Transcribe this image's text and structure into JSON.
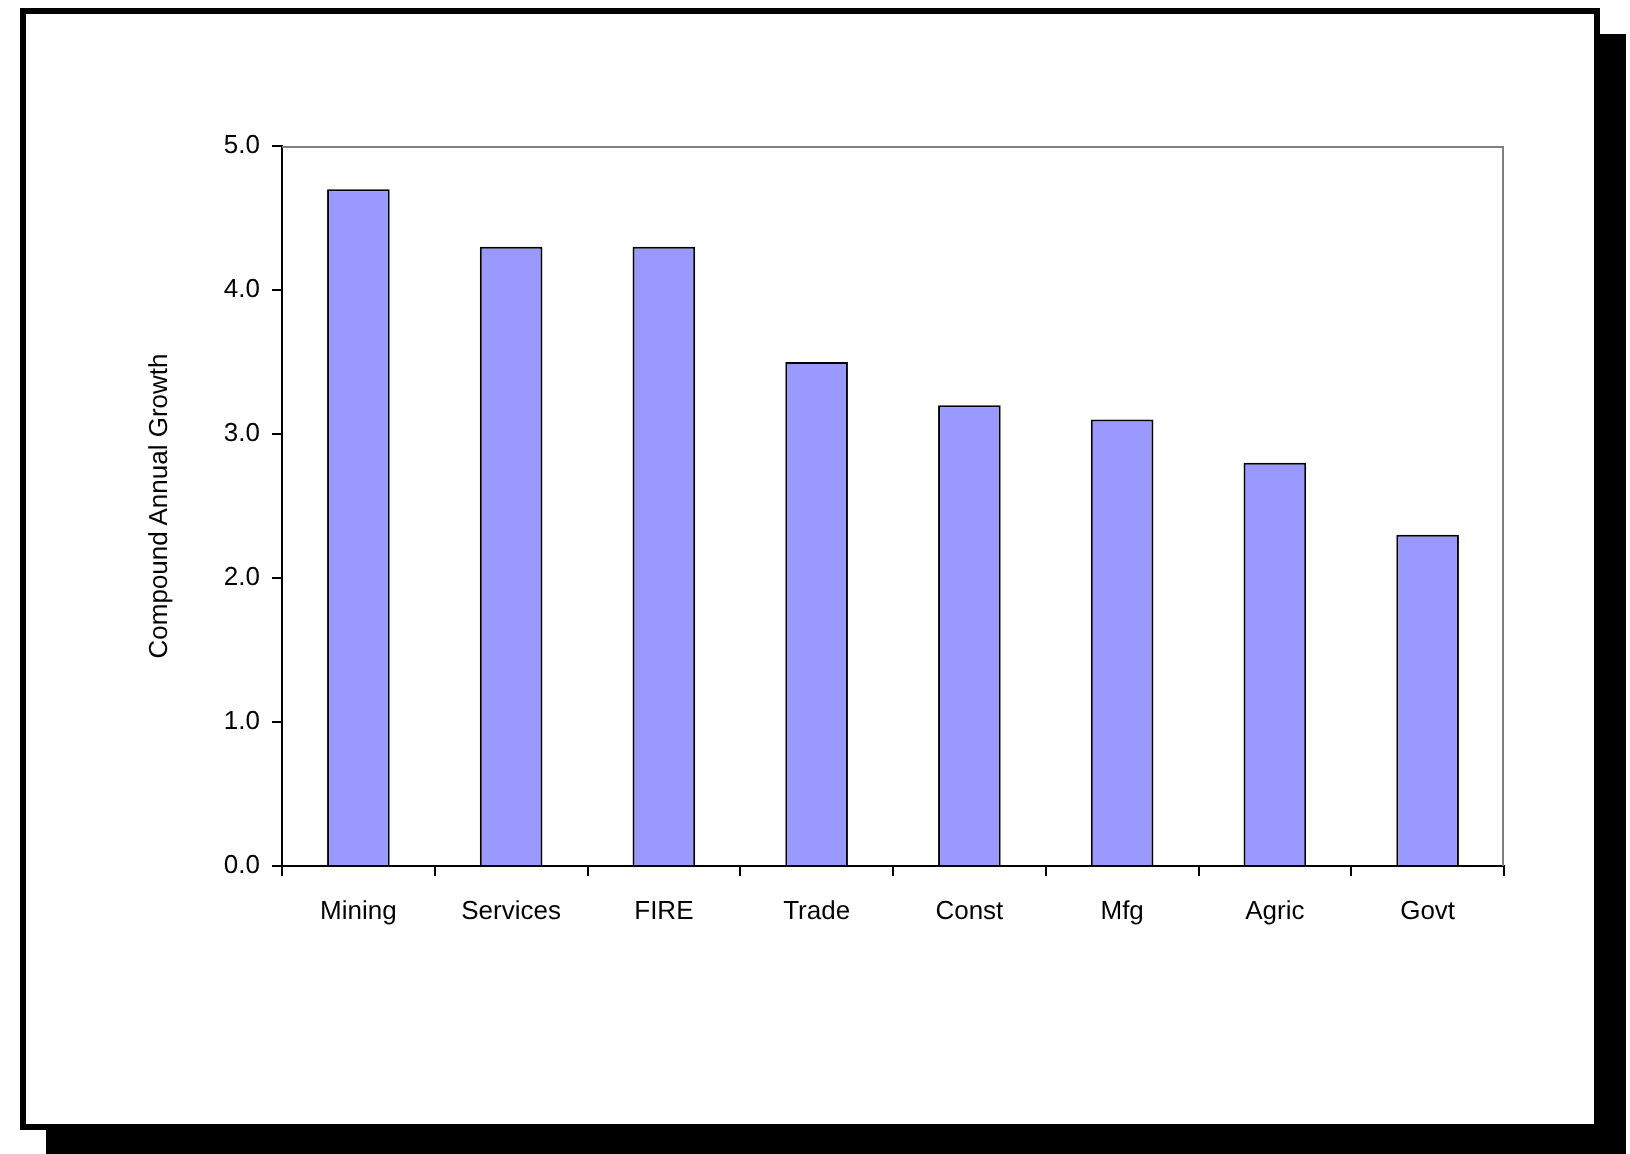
{
  "chart_data": {
    "type": "bar",
    "ylabel": "Compound Annual Growth",
    "categories": [
      "Mining",
      "Services",
      "FIRE",
      "Trade",
      "Const",
      "Mfg",
      "Agric",
      "Govt"
    ],
    "values": [
      4.7,
      4.3,
      4.3,
      3.5,
      3.2,
      3.1,
      2.8,
      2.3
    ],
    "color": "#9999ff",
    "ylim": [
      0,
      5
    ],
    "yticks": [
      {
        "value": 0,
        "label": "0.0"
      },
      {
        "value": 1,
        "label": "1.0"
      },
      {
        "value": 2,
        "label": "2.0"
      },
      {
        "value": 3,
        "label": "3.0"
      },
      {
        "value": 4,
        "label": "4.0"
      },
      {
        "value": 5,
        "label": "5.0"
      }
    ],
    "grid": false,
    "legend": false
  }
}
